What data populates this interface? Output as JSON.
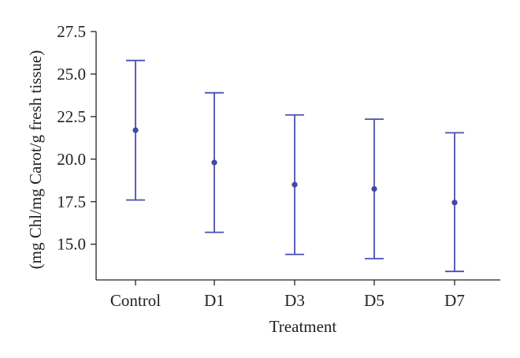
{
  "chart_data": {
    "type": "scatter",
    "subtype": "mean-with-error-bars",
    "title": "",
    "xlabel": "Treatment",
    "ylabel": "(mg Chl/mg Carot/g fresh tissue)",
    "categories": [
      "Control",
      "D1",
      "D3",
      "D5",
      "D7"
    ],
    "series": [
      {
        "mean": [
          21.7,
          19.8,
          18.5,
          18.25,
          17.45
        ],
        "lower": [
          17.6,
          15.7,
          14.4,
          14.15,
          13.4
        ],
        "upper": [
          25.8,
          23.9,
          22.6,
          22.35,
          21.55
        ]
      }
    ],
    "y_ticks": [
      15.0,
      17.5,
      20.0,
      22.5,
      25.0,
      27.5
    ],
    "y_tick_labels": [
      "15.0",
      "17.5",
      "20.0",
      "22.5",
      "25.0",
      "27.5"
    ],
    "ylim": [
      12.9,
      27.5
    ],
    "grid": false,
    "colors": {
      "series": "#4a4fb0",
      "point": "#3d4aa6",
      "axis": "#222222"
    }
  }
}
